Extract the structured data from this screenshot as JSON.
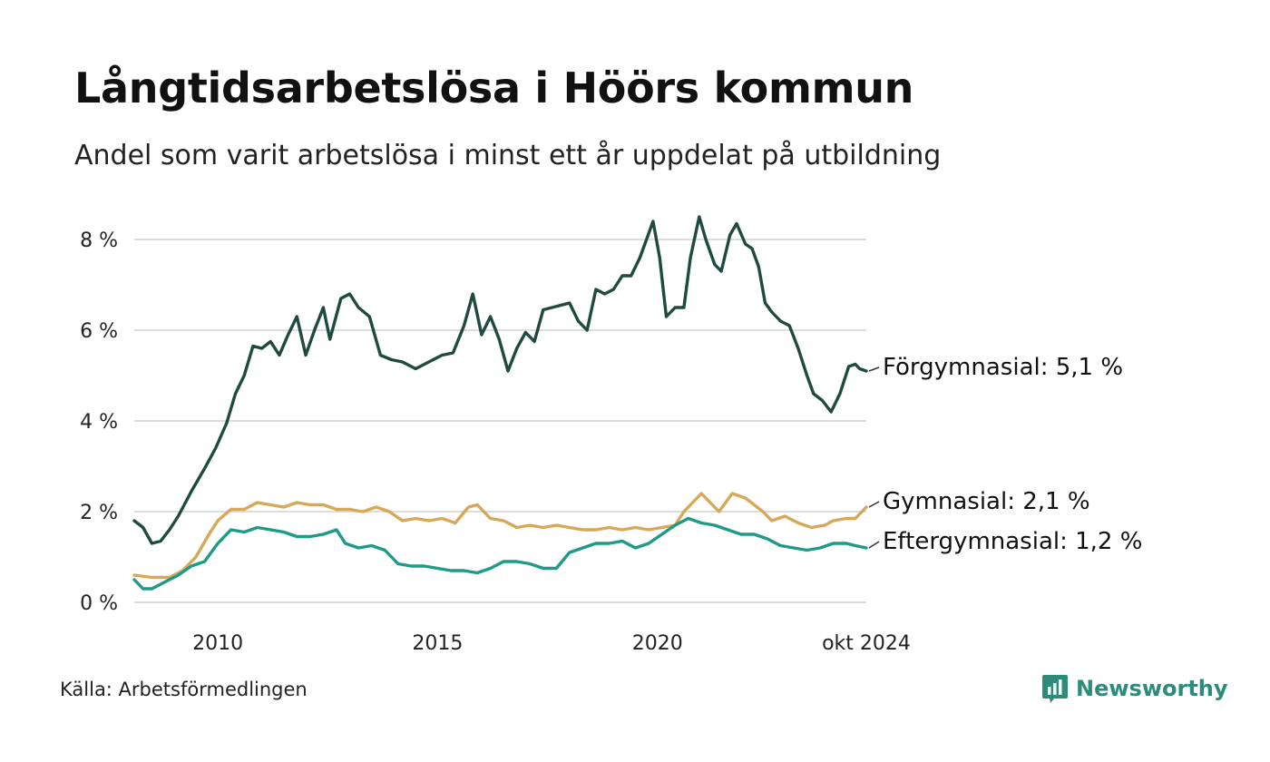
{
  "header": {
    "title": "Långtidsarbetslösa i Höörs kommun",
    "subtitle": "Andel som varit arbetslösa i minst ett år uppdelat på utbildning"
  },
  "footer": {
    "source": "Källa: Arbetsförmedlingen",
    "brand": "Newsworthy",
    "brand_icon": "newsworthy-logo-icon"
  },
  "colors": {
    "forgymnasial": "#1f4a3f",
    "gymnasial": "#d6a857",
    "eftergymnasial": "#1f9a88",
    "grid": "#dddddd",
    "brand": "#2e8b7a"
  },
  "chart_data": {
    "type": "line",
    "title": "Långtidsarbetslösa i Höörs kommun",
    "subtitle": "Andel som varit arbetslösa i minst ett år uppdelat på utbildning",
    "xlabel": "",
    "ylabel": "",
    "x_ticks": [
      "2010",
      "2015",
      "2020",
      "okt 2024"
    ],
    "y_ticks": [
      "0 %",
      "2 %",
      "4 %",
      "6 %",
      "8 %"
    ],
    "xlim": [
      2008.1,
      2024.75
    ],
    "ylim": [
      0,
      8
    ],
    "grid": true,
    "legend": "direct labels at line ends (right)",
    "series": [
      {
        "name": "Förgymnasial",
        "end_label": "Förgymnasial: 5,1 %",
        "color": "#1f4a3f",
        "points": [
          [
            2008.1,
            1.8
          ],
          [
            2008.3,
            1.65
          ],
          [
            2008.5,
            1.3
          ],
          [
            2008.7,
            1.35
          ],
          [
            2008.9,
            1.6
          ],
          [
            2009.1,
            1.9
          ],
          [
            2009.4,
            2.45
          ],
          [
            2009.7,
            2.95
          ],
          [
            2009.95,
            3.4
          ],
          [
            2010.2,
            3.95
          ],
          [
            2010.4,
            4.6
          ],
          [
            2010.6,
            5.0
          ],
          [
            2010.8,
            5.65
          ],
          [
            2011.0,
            5.6
          ],
          [
            2011.2,
            5.75
          ],
          [
            2011.4,
            5.45
          ],
          [
            2011.6,
            5.9
          ],
          [
            2011.8,
            6.3
          ],
          [
            2012.0,
            5.45
          ],
          [
            2012.2,
            6.0
          ],
          [
            2012.4,
            6.5
          ],
          [
            2012.55,
            5.8
          ],
          [
            2012.8,
            6.7
          ],
          [
            2013.0,
            6.8
          ],
          [
            2013.2,
            6.5
          ],
          [
            2013.45,
            6.3
          ],
          [
            2013.7,
            5.45
          ],
          [
            2013.95,
            5.35
          ],
          [
            2014.2,
            5.3
          ],
          [
            2014.5,
            5.15
          ],
          [
            2014.8,
            5.3
          ],
          [
            2015.1,
            5.45
          ],
          [
            2015.35,
            5.5
          ],
          [
            2015.6,
            6.1
          ],
          [
            2015.8,
            6.8
          ],
          [
            2016.0,
            5.9
          ],
          [
            2016.2,
            6.3
          ],
          [
            2016.4,
            5.8
          ],
          [
            2016.6,
            5.1
          ],
          [
            2016.8,
            5.6
          ],
          [
            2017.0,
            5.95
          ],
          [
            2017.2,
            5.75
          ],
          [
            2017.4,
            6.45
          ],
          [
            2017.6,
            6.5
          ],
          [
            2017.8,
            6.55
          ],
          [
            2018.0,
            6.6
          ],
          [
            2018.2,
            6.2
          ],
          [
            2018.4,
            6.0
          ],
          [
            2018.6,
            6.9
          ],
          [
            2018.8,
            6.8
          ],
          [
            2019.0,
            6.9
          ],
          [
            2019.2,
            7.2
          ],
          [
            2019.4,
            7.2
          ],
          [
            2019.6,
            7.6
          ],
          [
            2019.75,
            8.0
          ],
          [
            2019.9,
            8.4
          ],
          [
            2020.05,
            7.6
          ],
          [
            2020.2,
            6.3
          ],
          [
            2020.4,
            6.5
          ],
          [
            2020.6,
            6.5
          ],
          [
            2020.75,
            7.6
          ],
          [
            2020.95,
            8.5
          ],
          [
            2021.1,
            8.0
          ],
          [
            2021.3,
            7.45
          ],
          [
            2021.45,
            7.3
          ],
          [
            2021.65,
            8.1
          ],
          [
            2021.8,
            8.35
          ],
          [
            2022.0,
            7.9
          ],
          [
            2022.15,
            7.8
          ],
          [
            2022.3,
            7.4
          ],
          [
            2022.45,
            6.6
          ],
          [
            2022.6,
            6.4
          ],
          [
            2022.8,
            6.2
          ],
          [
            2023.0,
            6.1
          ],
          [
            2023.2,
            5.6
          ],
          [
            2023.4,
            5.0
          ],
          [
            2023.55,
            4.6
          ],
          [
            2023.75,
            4.45
          ],
          [
            2023.95,
            4.2
          ],
          [
            2024.15,
            4.6
          ],
          [
            2024.35,
            5.2
          ],
          [
            2024.5,
            5.25
          ],
          [
            2024.6,
            5.15
          ],
          [
            2024.75,
            5.1
          ]
        ]
      },
      {
        "name": "Gymnasial",
        "end_label": "Gymnasial: 2,1 %",
        "color": "#d6a857",
        "points": [
          [
            2008.1,
            0.6
          ],
          [
            2008.5,
            0.55
          ],
          [
            2008.9,
            0.55
          ],
          [
            2009.2,
            0.7
          ],
          [
            2009.5,
            1.0
          ],
          [
            2009.8,
            1.5
          ],
          [
            2010.0,
            1.8
          ],
          [
            2010.3,
            2.05
          ],
          [
            2010.6,
            2.05
          ],
          [
            2010.9,
            2.2
          ],
          [
            2011.2,
            2.15
          ],
          [
            2011.5,
            2.1
          ],
          [
            2011.8,
            2.2
          ],
          [
            2012.1,
            2.15
          ],
          [
            2012.4,
            2.15
          ],
          [
            2012.7,
            2.05
          ],
          [
            2013.0,
            2.05
          ],
          [
            2013.3,
            2.0
          ],
          [
            2013.6,
            2.1
          ],
          [
            2013.9,
            2.0
          ],
          [
            2014.2,
            1.8
          ],
          [
            2014.5,
            1.85
          ],
          [
            2014.8,
            1.8
          ],
          [
            2015.1,
            1.85
          ],
          [
            2015.4,
            1.75
          ],
          [
            2015.7,
            2.1
          ],
          [
            2015.9,
            2.15
          ],
          [
            2016.2,
            1.85
          ],
          [
            2016.5,
            1.8
          ],
          [
            2016.8,
            1.65
          ],
          [
            2017.1,
            1.7
          ],
          [
            2017.4,
            1.65
          ],
          [
            2017.7,
            1.7
          ],
          [
            2018.0,
            1.65
          ],
          [
            2018.3,
            1.6
          ],
          [
            2018.6,
            1.6
          ],
          [
            2018.9,
            1.65
          ],
          [
            2019.2,
            1.6
          ],
          [
            2019.5,
            1.65
          ],
          [
            2019.8,
            1.6
          ],
          [
            2020.1,
            1.65
          ],
          [
            2020.4,
            1.7
          ],
          [
            2020.6,
            2.0
          ],
          [
            2020.8,
            2.2
          ],
          [
            2021.0,
            2.4
          ],
          [
            2021.2,
            2.2
          ],
          [
            2021.4,
            2.0
          ],
          [
            2021.7,
            2.4
          ],
          [
            2022.0,
            2.3
          ],
          [
            2022.2,
            2.15
          ],
          [
            2022.4,
            2.0
          ],
          [
            2022.6,
            1.8
          ],
          [
            2022.9,
            1.9
          ],
          [
            2023.2,
            1.75
          ],
          [
            2023.5,
            1.65
          ],
          [
            2023.8,
            1.7
          ],
          [
            2024.0,
            1.8
          ],
          [
            2024.3,
            1.85
          ],
          [
            2024.5,
            1.85
          ],
          [
            2024.75,
            2.1
          ]
        ]
      },
      {
        "name": "Eftergymnasial",
        "end_label": "Eftergymnasial: 1,2 %",
        "color": "#1f9a88",
        "points": [
          [
            2008.1,
            0.5
          ],
          [
            2008.3,
            0.3
          ],
          [
            2008.5,
            0.3
          ],
          [
            2008.8,
            0.45
          ],
          [
            2009.1,
            0.6
          ],
          [
            2009.4,
            0.8
          ],
          [
            2009.7,
            0.9
          ],
          [
            2010.0,
            1.3
          ],
          [
            2010.3,
            1.6
          ],
          [
            2010.6,
            1.55
          ],
          [
            2010.9,
            1.65
          ],
          [
            2011.2,
            1.6
          ],
          [
            2011.5,
            1.55
          ],
          [
            2011.8,
            1.45
          ],
          [
            2012.1,
            1.45
          ],
          [
            2012.4,
            1.5
          ],
          [
            2012.7,
            1.6
          ],
          [
            2012.9,
            1.3
          ],
          [
            2013.2,
            1.2
          ],
          [
            2013.5,
            1.25
          ],
          [
            2013.8,
            1.15
          ],
          [
            2014.1,
            0.85
          ],
          [
            2014.4,
            0.8
          ],
          [
            2014.7,
            0.8
          ],
          [
            2015.0,
            0.75
          ],
          [
            2015.3,
            0.7
          ],
          [
            2015.6,
            0.7
          ],
          [
            2015.9,
            0.65
          ],
          [
            2016.2,
            0.75
          ],
          [
            2016.5,
            0.9
          ],
          [
            2016.8,
            0.9
          ],
          [
            2017.1,
            0.85
          ],
          [
            2017.4,
            0.75
          ],
          [
            2017.7,
            0.75
          ],
          [
            2018.0,
            1.1
          ],
          [
            2018.3,
            1.2
          ],
          [
            2018.6,
            1.3
          ],
          [
            2018.9,
            1.3
          ],
          [
            2019.2,
            1.35
          ],
          [
            2019.5,
            1.2
          ],
          [
            2019.8,
            1.3
          ],
          [
            2020.1,
            1.5
          ],
          [
            2020.4,
            1.7
          ],
          [
            2020.7,
            1.85
          ],
          [
            2021.0,
            1.75
          ],
          [
            2021.3,
            1.7
          ],
          [
            2021.6,
            1.6
          ],
          [
            2021.9,
            1.5
          ],
          [
            2022.2,
            1.5
          ],
          [
            2022.5,
            1.4
          ],
          [
            2022.8,
            1.25
          ],
          [
            2023.1,
            1.2
          ],
          [
            2023.4,
            1.15
          ],
          [
            2023.7,
            1.2
          ],
          [
            2024.0,
            1.3
          ],
          [
            2024.3,
            1.3
          ],
          [
            2024.5,
            1.25
          ],
          [
            2024.75,
            1.2
          ]
        ]
      }
    ]
  }
}
